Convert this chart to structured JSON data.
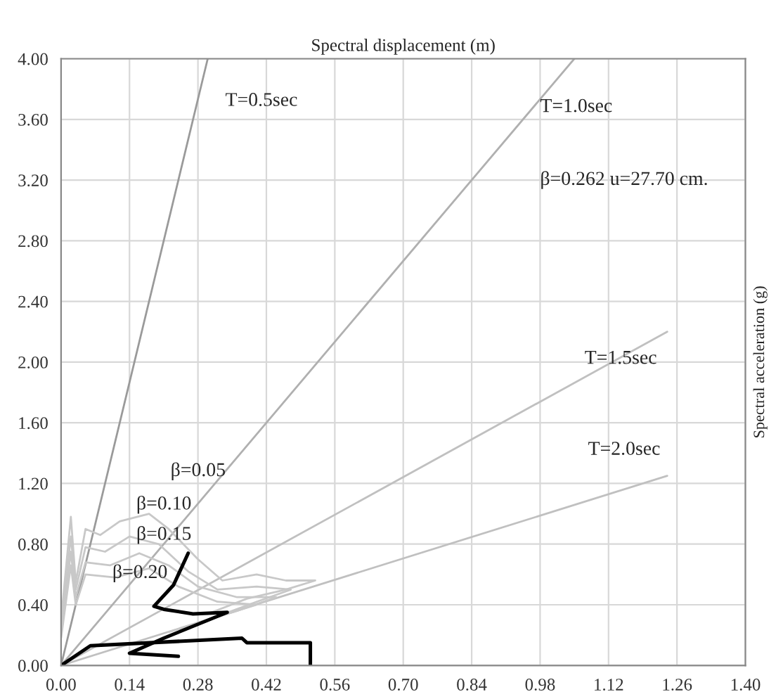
{
  "chart_data": {
    "type": "line",
    "xlabel": "Spectral displacement (m)",
    "ylabel": "Spectral acceleration (g)",
    "xlim": [
      0,
      1.4
    ],
    "ylim": [
      0,
      4.0
    ],
    "xticks": [
      {
        "value": 0,
        "label": "0.00"
      },
      {
        "value": 0.14,
        "label": "0.14"
      },
      {
        "value": 0.28,
        "label": "0.28"
      },
      {
        "value": 0.42,
        "label": "0.42"
      },
      {
        "value": 0.56,
        "label": "0.56"
      },
      {
        "value": 0.7,
        "label": "0.70"
      },
      {
        "value": 0.84,
        "label": "0.84"
      },
      {
        "value": 0.98,
        "label": "0.98"
      },
      {
        "value": 1.12,
        "label": "1.12"
      },
      {
        "value": 1.26,
        "label": "1.26"
      },
      {
        "value": 1.4,
        "label": "1.40"
      }
    ],
    "yticks": [
      {
        "value": 0,
        "label": "0.00"
      },
      {
        "value": 0.4,
        "label": "0.40"
      },
      {
        "value": 0.8,
        "label": "0.80"
      },
      {
        "value": 1.2,
        "label": "1.20"
      },
      {
        "value": 1.6,
        "label": "1.60"
      },
      {
        "value": 2.0,
        "label": "2.00"
      },
      {
        "value": 2.4,
        "label": "2.40"
      },
      {
        "value": 2.8,
        "label": "2.80"
      },
      {
        "value": 3.2,
        "label": "3.20"
      },
      {
        "value": 3.6,
        "label": "3.60"
      },
      {
        "value": 4.0,
        "label": "4.00"
      }
    ],
    "grid": true,
    "legend": false,
    "series": [
      {
        "color": "#9a9a9a",
        "x": [
          0,
          0.3
        ],
        "values": [
          0,
          4.0
        ]
      },
      {
        "color": "#b0b0b0",
        "x": [
          0,
          1.05
        ],
        "values": [
          0,
          4.0
        ]
      },
      {
        "color": "#c0c0c0",
        "x": [
          0,
          1.24
        ],
        "values": [
          0,
          2.2
        ]
      },
      {
        "color": "#c0c0c0",
        "x": [
          0,
          1.24
        ],
        "values": [
          0,
          1.25
        ]
      },
      {
        "color": "#c8c8c8",
        "x": [
          0,
          0.02,
          0.03,
          0.05,
          0.08,
          0.12,
          0.18,
          0.22,
          0.28,
          0.33,
          0.4,
          0.46,
          0.52,
          0.46,
          0.38,
          0.3
        ],
        "values": [
          0.3,
          0.98,
          0.55,
          0.9,
          0.86,
          0.95,
          1.0,
          0.9,
          0.7,
          0.56,
          0.6,
          0.56,
          0.56,
          0.5,
          0.44,
          0.34
        ]
      },
      {
        "color": "#c8c8c8",
        "x": [
          0,
          0.02,
          0.03,
          0.05,
          0.09,
          0.14,
          0.2,
          0.26,
          0.32,
          0.4,
          0.47,
          0.4,
          0.3
        ],
        "values": [
          0.25,
          0.85,
          0.5,
          0.78,
          0.75,
          0.85,
          0.8,
          0.62,
          0.5,
          0.52,
          0.5,
          0.42,
          0.3
        ]
      },
      {
        "color": "#c8c8c8",
        "x": [
          0,
          0.02,
          0.03,
          0.05,
          0.1,
          0.16,
          0.22,
          0.28,
          0.36,
          0.44,
          0.36,
          0.26
        ],
        "values": [
          0.2,
          0.75,
          0.45,
          0.68,
          0.66,
          0.74,
          0.66,
          0.52,
          0.45,
          0.45,
          0.36,
          0.26
        ]
      },
      {
        "color": "#c8c8c8",
        "x": [
          0,
          0.02,
          0.03,
          0.05,
          0.11,
          0.18,
          0.24,
          0.32,
          0.4,
          0.32,
          0.22
        ],
        "values": [
          0.18,
          0.66,
          0.4,
          0.6,
          0.58,
          0.64,
          0.52,
          0.42,
          0.4,
          0.32,
          0.22
        ]
      },
      {
        "color": "#000000",
        "x": [
          0.26,
          0.23,
          0.19,
          0.21,
          0.27,
          0.34,
          0.21,
          0.14,
          0.24
        ],
        "values": [
          0.74,
          0.53,
          0.39,
          0.37,
          0.34,
          0.35,
          0.18,
          0.08,
          0.06
        ]
      },
      {
        "color": "#000000",
        "x": [
          0,
          0.06,
          0.37,
          0.38,
          0.51,
          0.51
        ],
        "values": [
          0,
          0.13,
          0.18,
          0.15,
          0.15,
          0
        ]
      }
    ],
    "annotations": [
      "T=0.5sec",
      "T=1.0sec",
      "β=0.262 u=27.70 cm.",
      "T=1.5sec",
      "T=2.0sec",
      "β=0.05",
      "β=0.10",
      "β=0.15",
      "β=0.20"
    ]
  }
}
